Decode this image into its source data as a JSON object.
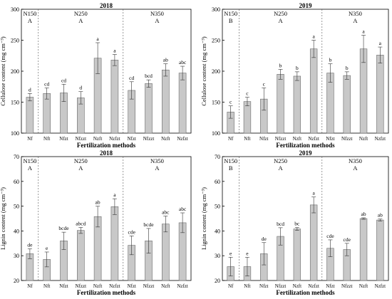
{
  "figure": {
    "xlabel": "Fertilization methods"
  },
  "chart_data": [
    {
      "type": "bar",
      "title": "2018",
      "ylabel": "Cellulose content (mg cm⁻³)",
      "ylim": [
        100,
        300
      ],
      "yticks": [
        100,
        150,
        200,
        250,
        300
      ],
      "categories": [
        "Nf",
        "Nft",
        "Nfzt",
        "Nfzzt",
        "Nzft",
        "Nzfzt",
        "Nfzt",
        "Nfzzt",
        "Nzft",
        "Nzfzt"
      ],
      "values": [
        158,
        164,
        165,
        157,
        221,
        218,
        169,
        180,
        202,
        197
      ],
      "errors": [
        6,
        9,
        14,
        10,
        25,
        9,
        14,
        6,
        10,
        11
      ],
      "letters": [
        "d",
        "cd",
        "cd",
        "d",
        "a",
        "a",
        "cd",
        "bcd",
        "ab",
        "abc"
      ],
      "groups": [
        {
          "label": "N150",
          "letter": "A"
        },
        {
          "label": "N250",
          "letter": "A"
        },
        {
          "label": "N350",
          "letter": "A"
        }
      ]
    },
    {
      "type": "bar",
      "title": "2019",
      "ylabel": "Cellulose content (mg cm⁻³)",
      "ylim": [
        100,
        300
      ],
      "yticks": [
        100,
        150,
        200,
        250,
        300
      ],
      "categories": [
        "Nf",
        "Nft",
        "Nfzt",
        "Nfzzt",
        "Nzft",
        "Nzfzt",
        "Nfzt",
        "Nfzzt",
        "Nzft",
        "Nzfzt"
      ],
      "values": [
        134,
        151,
        155,
        195,
        192,
        236,
        197,
        193,
        236,
        226
      ],
      "errors": [
        10,
        7,
        18,
        8,
        7,
        14,
        15,
        6,
        22,
        13
      ],
      "letters": [
        "c",
        "c",
        "c",
        "b",
        "b",
        "a",
        "b",
        "b",
        "a",
        "a"
      ],
      "groups": [
        {
          "label": "N150",
          "letter": "B"
        },
        {
          "label": "N250",
          "letter": "A"
        },
        {
          "label": "N350",
          "letter": "A"
        }
      ]
    },
    {
      "type": "bar",
      "title": "2018",
      "ylabel": "Lignin content (mg cm⁻³)",
      "ylim": [
        20,
        70
      ],
      "yticks": [
        20,
        30,
        40,
        50,
        60,
        70
      ],
      "categories": [
        "Nf",
        "Nft",
        "Nfzt",
        "Nfzzt",
        "Nzft",
        "Nzfzt",
        "Nfzt",
        "Nfzzt",
        "Nzft",
        "Nzfzt"
      ],
      "values": [
        30.8,
        28.5,
        36.0,
        40.2,
        45.8,
        49.8,
        34.2,
        36.0,
        42.8,
        43.3
      ],
      "errors": [
        2.0,
        3.0,
        3.5,
        1.2,
        4.2,
        3.2,
        3.8,
        5.0,
        3.2,
        4.0
      ],
      "letters": [
        "de",
        "e",
        "bcde",
        "abcd",
        "ab",
        "a",
        "cde",
        "bcde",
        "abc",
        "abc"
      ],
      "groups": [
        {
          "label": "N150",
          "letter": "A"
        },
        {
          "label": "N250",
          "letter": "A"
        },
        {
          "label": "N350",
          "letter": "A"
        }
      ]
    },
    {
      "type": "bar",
      "title": "2019",
      "ylabel": "Lignin content (mg cm⁻³)",
      "ylim": [
        20,
        70
      ],
      "yticks": [
        20,
        30,
        40,
        50,
        60,
        70
      ],
      "categories": [
        "Nf",
        "Nft",
        "Nfzt",
        "Nfzzt",
        "Nzft",
        "Nzfzt",
        "Nfzt",
        "Nfzzt",
        "Nzft",
        "Nzfzt"
      ],
      "values": [
        25.6,
        25.6,
        30.8,
        37.8,
        40.8,
        50.5,
        33.0,
        32.5,
        45.0,
        44.4
      ],
      "errors": [
        3.8,
        3.8,
        4.5,
        3.5,
        0.6,
        3.2,
        3.4,
        2.5,
        0.3,
        0.4
      ],
      "letters": [
        "e",
        "e",
        "de",
        "bcd",
        "bc",
        "a",
        "cde",
        "cde",
        "ab",
        "ab"
      ],
      "groups": [
        {
          "label": "N150",
          "letter": "B"
        },
        {
          "label": "N250",
          "letter": "A"
        },
        {
          "label": "N350",
          "letter": "A"
        }
      ]
    }
  ]
}
